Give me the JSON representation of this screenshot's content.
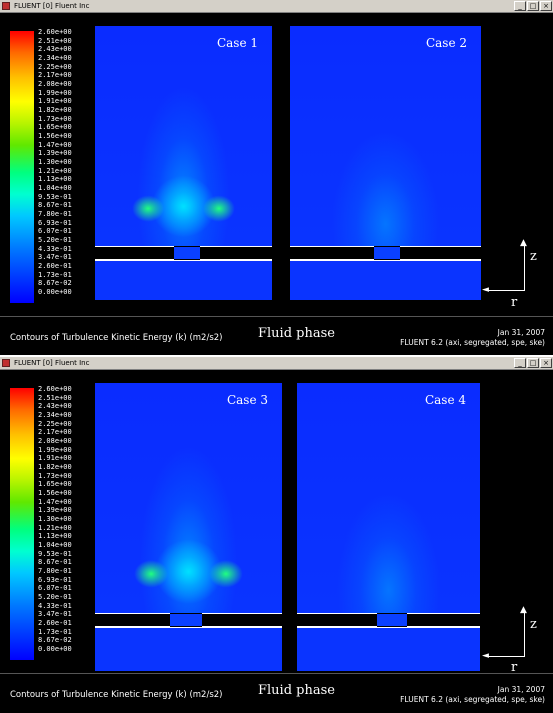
{
  "windows": [
    {
      "title": "FLUENT [0] Fluent Inc",
      "cases": [
        {
          "label": "Case 1",
          "intensity": "high"
        },
        {
          "label": "Case 2",
          "intensity": "low"
        }
      ],
      "caption_left": "Contours of Turbulence Kinetic Energy (k)  (m2/s2)",
      "caption_center": "Fluid phase",
      "caption_date": "Jan 31, 2007",
      "caption_solver": "FLUENT 6.2 (axi, segregated, spe, ske)"
    },
    {
      "title": "FLUENT [0] Fluent Inc",
      "cases": [
        {
          "label": "Case 3",
          "intensity": "high"
        },
        {
          "label": "Case 4",
          "intensity": "low"
        }
      ],
      "caption_left": "Contours of Turbulence Kinetic Energy (k)  (m2/s2)",
      "caption_center": "Fluid phase",
      "caption_date": "Jan 31, 2007",
      "caption_solver": "FLUENT 6.2 (axi, segregated, spe, ske)"
    }
  ],
  "legend": {
    "labels": [
      "2.60e+00",
      "2.51e+00",
      "2.43e+00",
      "2.34e+00",
      "2.25e+00",
      "2.17e+00",
      "2.08e+00",
      "1.99e+00",
      "1.91e+00",
      "1.82e+00",
      "1.73e+00",
      "1.65e+00",
      "1.56e+00",
      "1.47e+00",
      "1.39e+00",
      "1.30e+00",
      "1.21e+00",
      "1.13e+00",
      "1.04e+00",
      "9.53e-01",
      "8.67e-01",
      "7.80e-01",
      "6.93e-01",
      "6.07e-01",
      "5.20e-01",
      "4.33e-01",
      "3.47e-01",
      "2.60e-01",
      "1.73e-01",
      "8.67e-02",
      "0.00e+00"
    ],
    "colormap": "rainbow red-to-blue"
  },
  "axes": {
    "vertical_label": "z",
    "horizontal_label": "r"
  },
  "colors": {
    "background": "#000000",
    "low": "#0000ff",
    "high": "#ff0000",
    "titlebar": "#d4d0c8"
  }
}
